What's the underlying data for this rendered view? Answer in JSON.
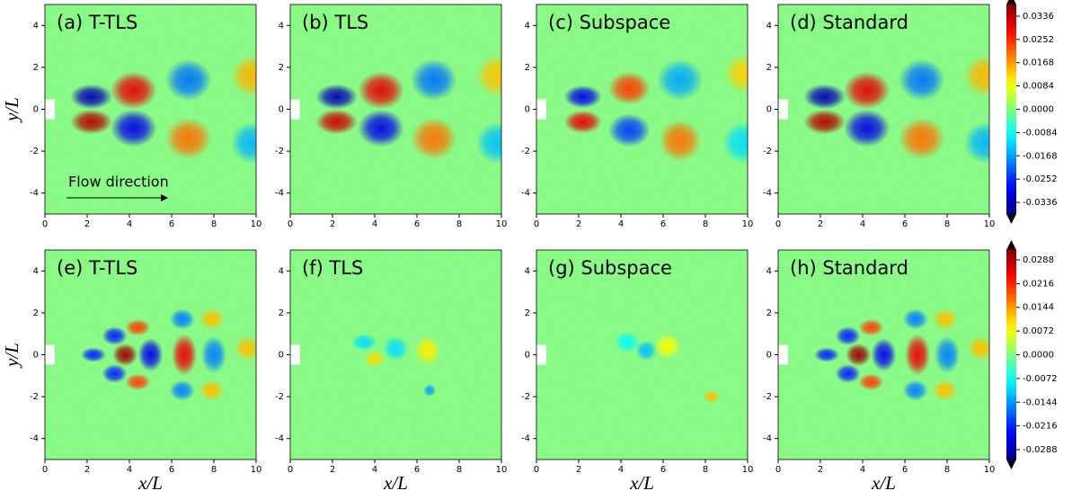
{
  "chart_data": [
    {
      "type": "heatmap",
      "title": "(a) T-TLS",
      "ylabel": "y/L",
      "annotation": "Flow direction",
      "xlim": [
        0,
        10
      ],
      "ylim": [
        -5,
        5
      ],
      "xticks": [
        0,
        2,
        4,
        6,
        8,
        10
      ],
      "yticks": [
        -4,
        -2,
        0,
        2,
        4
      ],
      "blobs": [
        {
          "x": 2.2,
          "y": 0.6,
          "rx": 1.0,
          "ry": 0.6,
          "value": -0.034
        },
        {
          "x": 2.2,
          "y": -0.6,
          "rx": 1.0,
          "ry": 0.6,
          "value": 0.034
        },
        {
          "x": 4.2,
          "y": 0.9,
          "rx": 1.1,
          "ry": 0.9,
          "value": 0.03
        },
        {
          "x": 4.2,
          "y": -0.9,
          "rx": 1.1,
          "ry": 0.9,
          "value": -0.03
        },
        {
          "x": 6.8,
          "y": 1.4,
          "rx": 1.1,
          "ry": 1.0,
          "value": -0.02
        },
        {
          "x": 6.8,
          "y": -1.4,
          "rx": 1.1,
          "ry": 1.0,
          "value": 0.02
        },
        {
          "x": 9.8,
          "y": 1.6,
          "rx": 1.0,
          "ry": 1.0,
          "value": 0.015
        },
        {
          "x": 9.8,
          "y": -1.6,
          "rx": 1.0,
          "ry": 1.0,
          "value": -0.015
        }
      ]
    },
    {
      "type": "heatmap",
      "title": "(b) TLS",
      "xlim": [
        0,
        10
      ],
      "ylim": [
        -5,
        5
      ],
      "xticks": [
        0,
        2,
        4,
        6,
        8,
        10
      ],
      "yticks": [
        -4,
        -2,
        0,
        2,
        4
      ],
      "blobs": [
        {
          "x": 2.2,
          "y": 0.6,
          "rx": 1.0,
          "ry": 0.6,
          "value": -0.034
        },
        {
          "x": 2.2,
          "y": -0.6,
          "rx": 1.0,
          "ry": 0.6,
          "value": 0.032
        },
        {
          "x": 4.3,
          "y": 0.9,
          "rx": 1.1,
          "ry": 0.9,
          "value": 0.03
        },
        {
          "x": 4.3,
          "y": -0.9,
          "rx": 1.1,
          "ry": 0.9,
          "value": -0.03
        },
        {
          "x": 6.8,
          "y": 1.4,
          "rx": 1.1,
          "ry": 1.0,
          "value": -0.02
        },
        {
          "x": 6.8,
          "y": -1.4,
          "rx": 1.1,
          "ry": 1.0,
          "value": 0.02
        },
        {
          "x": 9.8,
          "y": 1.6,
          "rx": 1.0,
          "ry": 1.0,
          "value": 0.014
        },
        {
          "x": 9.8,
          "y": -1.6,
          "rx": 1.0,
          "ry": 1.0,
          "value": -0.014
        }
      ]
    },
    {
      "type": "heatmap",
      "title": "(c) Subspace",
      "xlim": [
        0,
        10
      ],
      "ylim": [
        -5,
        5
      ],
      "xticks": [
        0,
        2,
        4,
        6,
        8,
        10
      ],
      "yticks": [
        -4,
        -2,
        0,
        2,
        4
      ],
      "blobs": [
        {
          "x": 2.2,
          "y": 0.6,
          "rx": 0.9,
          "ry": 0.55,
          "value": -0.03
        },
        {
          "x": 2.2,
          "y": -0.6,
          "rx": 0.9,
          "ry": 0.55,
          "value": 0.03
        },
        {
          "x": 4.4,
          "y": 1.0,
          "rx": 1.0,
          "ry": 0.8,
          "value": 0.024
        },
        {
          "x": 4.4,
          "y": -1.0,
          "rx": 1.0,
          "ry": 0.8,
          "value": -0.024
        },
        {
          "x": 6.8,
          "y": 1.4,
          "rx": 1.1,
          "ry": 1.0,
          "value": -0.016
        },
        {
          "x": 6.8,
          "y": -1.5,
          "rx": 1.0,
          "ry": 1.0,
          "value": 0.02
        },
        {
          "x": 9.8,
          "y": 1.7,
          "rx": 0.9,
          "ry": 0.9,
          "value": 0.013
        },
        {
          "x": 9.8,
          "y": -1.6,
          "rx": 1.0,
          "ry": 1.0,
          "value": -0.012
        }
      ]
    },
    {
      "type": "heatmap",
      "title": "(d) Standard",
      "xlim": [
        0,
        10
      ],
      "ylim": [
        -5,
        5
      ],
      "xticks": [
        0,
        2,
        4,
        6,
        8,
        10
      ],
      "yticks": [
        -4,
        -2,
        0,
        2,
        4
      ],
      "blobs": [
        {
          "x": 2.2,
          "y": 0.6,
          "rx": 1.0,
          "ry": 0.6,
          "value": -0.034
        },
        {
          "x": 2.2,
          "y": -0.6,
          "rx": 1.0,
          "ry": 0.6,
          "value": 0.034
        },
        {
          "x": 4.2,
          "y": 0.9,
          "rx": 1.1,
          "ry": 0.9,
          "value": 0.03
        },
        {
          "x": 4.2,
          "y": -0.9,
          "rx": 1.1,
          "ry": 0.9,
          "value": -0.03
        },
        {
          "x": 6.8,
          "y": 1.4,
          "rx": 1.1,
          "ry": 1.0,
          "value": -0.02
        },
        {
          "x": 6.8,
          "y": -1.4,
          "rx": 1.1,
          "ry": 1.0,
          "value": 0.02
        },
        {
          "x": 9.8,
          "y": 1.6,
          "rx": 1.0,
          "ry": 1.0,
          "value": 0.015
        },
        {
          "x": 9.8,
          "y": -1.6,
          "rx": 1.0,
          "ry": 1.0,
          "value": -0.015
        }
      ]
    },
    {
      "type": "heatmap",
      "title": "(e) T-TLS",
      "xlabel": "x/L",
      "ylabel": "y/L",
      "xlim": [
        0,
        10
      ],
      "ylim": [
        -5,
        5
      ],
      "xticks": [
        0,
        2,
        4,
        6,
        8,
        10
      ],
      "yticks": [
        -4,
        -2,
        0,
        2,
        4
      ],
      "blobs": [
        {
          "x": 2.3,
          "y": 0.0,
          "rx": 0.6,
          "ry": 0.35,
          "value": -0.022
        },
        {
          "x": 3.3,
          "y": 0.9,
          "rx": 0.6,
          "ry": 0.45,
          "value": -0.022
        },
        {
          "x": 3.3,
          "y": -0.9,
          "rx": 0.6,
          "ry": 0.45,
          "value": -0.022
        },
        {
          "x": 3.8,
          "y": 0.0,
          "rx": 0.6,
          "ry": 0.55,
          "value": 0.03
        },
        {
          "x": 4.4,
          "y": 1.3,
          "rx": 0.6,
          "ry": 0.4,
          "value": 0.02
        },
        {
          "x": 4.4,
          "y": -1.3,
          "rx": 0.6,
          "ry": 0.4,
          "value": 0.02
        },
        {
          "x": 5.0,
          "y": 0.0,
          "rx": 0.6,
          "ry": 0.8,
          "value": -0.025
        },
        {
          "x": 6.6,
          "y": 0.0,
          "rx": 0.6,
          "ry": 1.0,
          "value": 0.025
        },
        {
          "x": 6.5,
          "y": 1.7,
          "rx": 0.6,
          "ry": 0.5,
          "value": -0.016
        },
        {
          "x": 6.5,
          "y": -1.7,
          "rx": 0.6,
          "ry": 0.5,
          "value": -0.016
        },
        {
          "x": 8.0,
          "y": 0.0,
          "rx": 0.6,
          "ry": 0.9,
          "value": -0.016
        },
        {
          "x": 7.9,
          "y": 1.7,
          "rx": 0.6,
          "ry": 0.5,
          "value": 0.012
        },
        {
          "x": 7.9,
          "y": -1.7,
          "rx": 0.6,
          "ry": 0.5,
          "value": 0.012
        },
        {
          "x": 9.6,
          "y": 0.3,
          "rx": 0.6,
          "ry": 0.6,
          "value": 0.012
        }
      ]
    },
    {
      "type": "heatmap",
      "title": "(f) TLS",
      "xlabel": "x/L",
      "xlim": [
        0,
        10
      ],
      "ylim": [
        -5,
        5
      ],
      "xticks": [
        0,
        2,
        4,
        6,
        8,
        10
      ],
      "yticks": [
        -4,
        -2,
        0,
        2,
        4
      ],
      "blobs": [
        {
          "x": 3.5,
          "y": 0.6,
          "rx": 0.6,
          "ry": 0.4,
          "value": -0.01
        },
        {
          "x": 4.0,
          "y": -0.2,
          "rx": 0.5,
          "ry": 0.4,
          "value": 0.01
        },
        {
          "x": 5.0,
          "y": 0.3,
          "rx": 0.6,
          "ry": 0.6,
          "value": -0.01
        },
        {
          "x": 6.5,
          "y": 0.2,
          "rx": 0.6,
          "ry": 0.7,
          "value": 0.009
        },
        {
          "x": 6.6,
          "y": -1.7,
          "rx": 0.3,
          "ry": 0.3,
          "value": -0.014
        }
      ]
    },
    {
      "type": "heatmap",
      "title": "(g) Subspace",
      "xlabel": "x/L",
      "xlim": [
        0,
        10
      ],
      "ylim": [
        -5,
        5
      ],
      "xticks": [
        0,
        2,
        4,
        6,
        8,
        10
      ],
      "yticks": [
        -4,
        -2,
        0,
        2,
        4
      ],
      "blobs": [
        {
          "x": 4.3,
          "y": 0.6,
          "rx": 0.6,
          "ry": 0.5,
          "value": -0.008
        },
        {
          "x": 5.2,
          "y": 0.2,
          "rx": 0.5,
          "ry": 0.5,
          "value": -0.012
        },
        {
          "x": 6.2,
          "y": 0.4,
          "rx": 0.6,
          "ry": 0.6,
          "value": 0.008
        },
        {
          "x": 8.3,
          "y": -2.0,
          "rx": 0.4,
          "ry": 0.3,
          "value": 0.012
        }
      ]
    },
    {
      "type": "heatmap",
      "title": "(h) Standard",
      "xlabel": "x/L",
      "xlim": [
        0,
        10
      ],
      "ylim": [
        -5,
        5
      ],
      "xticks": [
        0,
        2,
        4,
        6,
        8,
        10
      ],
      "yticks": [
        -4,
        -2,
        0,
        2,
        4
      ],
      "blobs": [
        {
          "x": 2.3,
          "y": 0.0,
          "rx": 0.6,
          "ry": 0.35,
          "value": -0.022
        },
        {
          "x": 3.3,
          "y": 0.9,
          "rx": 0.6,
          "ry": 0.45,
          "value": -0.022
        },
        {
          "x": 3.3,
          "y": -0.9,
          "rx": 0.6,
          "ry": 0.45,
          "value": -0.022
        },
        {
          "x": 3.8,
          "y": 0.0,
          "rx": 0.6,
          "ry": 0.55,
          "value": 0.03
        },
        {
          "x": 4.4,
          "y": 1.3,
          "rx": 0.6,
          "ry": 0.4,
          "value": 0.02
        },
        {
          "x": 4.4,
          "y": -1.3,
          "rx": 0.6,
          "ry": 0.4,
          "value": 0.02
        },
        {
          "x": 5.0,
          "y": 0.0,
          "rx": 0.6,
          "ry": 0.8,
          "value": -0.025
        },
        {
          "x": 6.6,
          "y": 0.0,
          "rx": 0.6,
          "ry": 1.0,
          "value": 0.025
        },
        {
          "x": 6.5,
          "y": 1.7,
          "rx": 0.6,
          "ry": 0.5,
          "value": -0.016
        },
        {
          "x": 6.5,
          "y": -1.7,
          "rx": 0.6,
          "ry": 0.5,
          "value": -0.016
        },
        {
          "x": 8.0,
          "y": 0.0,
          "rx": 0.6,
          "ry": 0.9,
          "value": -0.016
        },
        {
          "x": 7.9,
          "y": 1.7,
          "rx": 0.6,
          "ry": 0.5,
          "value": 0.012
        },
        {
          "x": 7.9,
          "y": -1.7,
          "rx": 0.6,
          "ry": 0.5,
          "value": 0.012
        },
        {
          "x": 9.6,
          "y": 0.3,
          "rx": 0.6,
          "ry": 0.6,
          "value": 0.012
        }
      ]
    },
    {
      "type": "colorbar",
      "clim": [
        -0.0378,
        0.0378
      ],
      "ticks": [
        0.0336,
        0.0252,
        0.0168,
        0.0084,
        {
          "value": 0,
          "label": "0.0000"
        },
        -0.0084,
        -0.0168,
        -0.0252,
        -0.0336
      ]
    },
    {
      "type": "colorbar",
      "clim": [
        -0.0318,
        0.0318
      ],
      "ticks": [
        0.0288,
        0.0216,
        0.0144,
        0.0072,
        {
          "value": 0,
          "label": "0.0000"
        },
        -0.0072,
        -0.0144,
        -0.0216,
        -0.0288
      ]
    }
  ]
}
